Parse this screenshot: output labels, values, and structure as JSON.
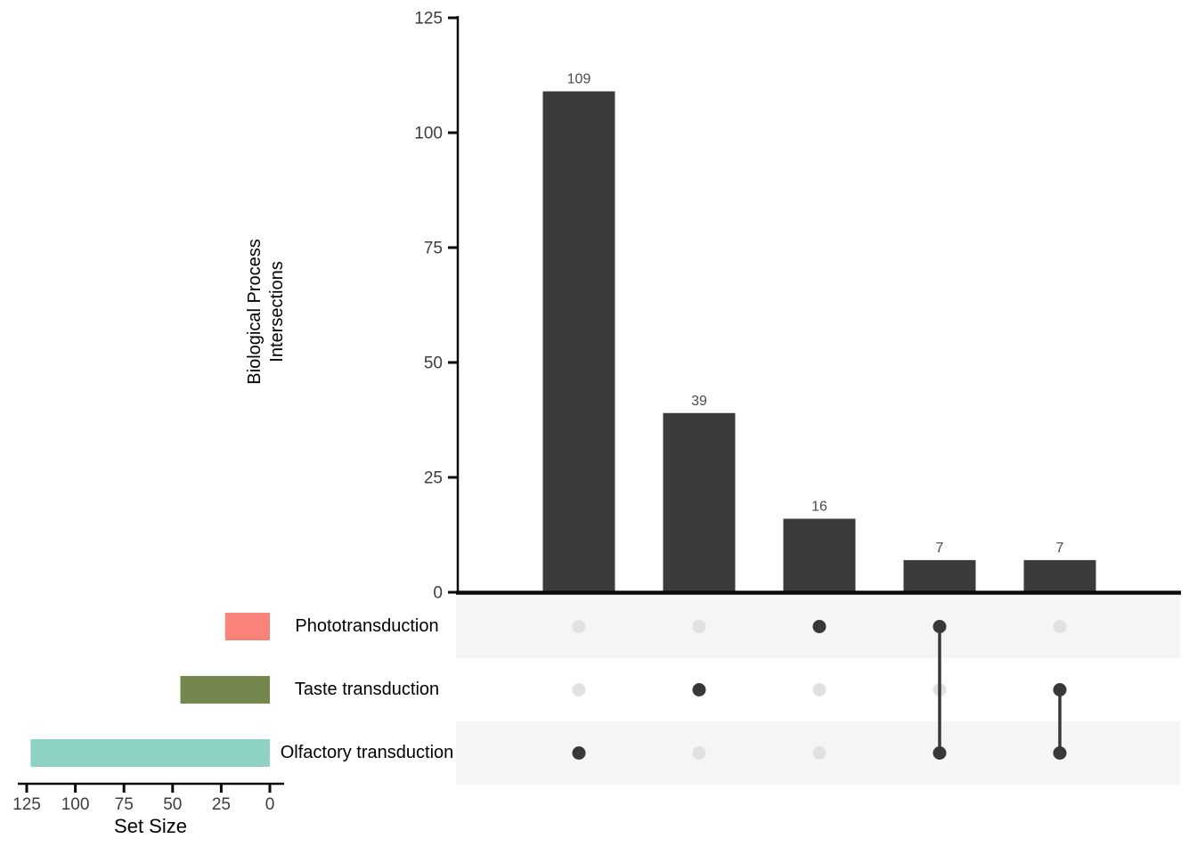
{
  "figure": {
    "background": "#ffffff",
    "colors": {
      "main_bar": "#3B3B3B",
      "axis_line": "#0a0a0a",
      "tick_label": "#3d3d3d",
      "value_label": "#4a4a4a",
      "stripe": "#F5F5F5",
      "dot_inactive": "#E1E1E1",
      "dot_active": "#383838",
      "connector": "#383838"
    }
  },
  "chart_data": {
    "type": "upset",
    "title": "",
    "intersection_axis": {
      "label": "Biological Process Intersections",
      "label_lines": [
        "Biological Process",
        "Intersections"
      ],
      "ticks": [
        0,
        25,
        50,
        75,
        100,
        125
      ],
      "range": [
        0,
        125
      ]
    },
    "set_size_axis": {
      "label": "Set Size",
      "ticks": [
        125,
        100,
        75,
        50,
        25,
        0
      ],
      "range": [
        125,
        0
      ]
    },
    "sets": [
      {
        "name": "Phototransduction",
        "size": 23,
        "color": "#F98379"
      },
      {
        "name": "Taste transduction",
        "size": 46,
        "color": "#74884E"
      },
      {
        "name": "Olfactory transduction",
        "size": 123,
        "color": "#8DD2C5"
      }
    ],
    "intersections": [
      {
        "value": 109,
        "members": [
          "Olfactory transduction"
        ]
      },
      {
        "value": 39,
        "members": [
          "Taste transduction"
        ]
      },
      {
        "value": 16,
        "members": [
          "Phototransduction"
        ]
      },
      {
        "value": 7,
        "members": [
          "Phototransduction",
          "Olfactory transduction"
        ]
      },
      {
        "value": 7,
        "members": [
          "Taste transduction",
          "Olfactory transduction"
        ]
      }
    ]
  }
}
